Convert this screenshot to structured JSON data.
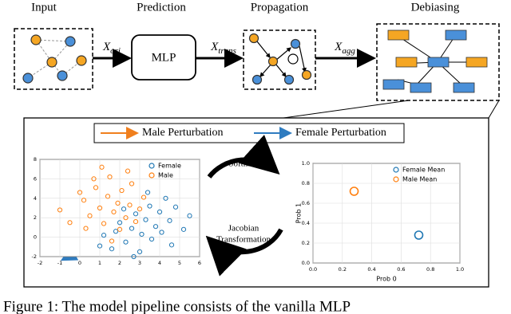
{
  "header": {
    "stages": [
      "Input",
      "Prediction",
      "Propagation",
      "Debiasing"
    ]
  },
  "pipeline": {
    "mlp": "MLP",
    "arrows": [
      {
        "symbol": "X",
        "subscript": "ori"
      },
      {
        "symbol": "X",
        "subscript": "trans"
      },
      {
        "symbol": "X",
        "subscript": "agg"
      }
    ]
  },
  "panel": {
    "legend": [
      "Male Perturbation",
      "Female Perturbation"
    ],
    "softmax": "Softmax",
    "jacobian": [
      "Jacobian",
      "Transformation"
    ]
  },
  "chart_data": [
    {
      "type": "scatter",
      "xlim": [
        -2,
        6
      ],
      "xticks": [
        -2,
        -1,
        0,
        1,
        2,
        3,
        4,
        5,
        6
      ],
      "ylim": [
        -2,
        8
      ],
      "yticks": [
        -2,
        0,
        2,
        4,
        6,
        8
      ],
      "grid": true,
      "legend": "upper right",
      "series": [
        {
          "name": "Female",
          "color": "#1f77b4",
          "x": [
            1.2,
            1.6,
            2.0,
            2.3,
            2.6,
            2.8,
            3.0,
            3.1,
            3.3,
            3.5,
            3.6,
            3.8,
            4.0,
            4.1,
            4.3,
            4.5,
            4.8,
            5.2,
            5.5,
            2.2,
            1.8,
            3.4,
            2.7,
            4.6,
            1.0
          ],
          "values": [
            0.2,
            -1.2,
            1.5,
            -0.5,
            0.9,
            2.4,
            -1.5,
            0.3,
            1.8,
            3.2,
            -0.2,
            1.1,
            2.6,
            0.5,
            4.0,
            1.7,
            3.1,
            0.8,
            2.2,
            2.9,
            0.6,
            4.6,
            -2.0,
            -0.8,
            -0.9
          ]
        },
        {
          "name": "Male",
          "color": "#ff7f0e",
          "x": [
            -0.5,
            0.2,
            0.5,
            0.8,
            1.0,
            1.2,
            1.4,
            1.5,
            1.7,
            1.9,
            2.0,
            2.1,
            2.3,
            2.5,
            2.6,
            2.8,
            3.0,
            0.0,
            0.3,
            1.1,
            1.6,
            2.4,
            3.2,
            -1.0,
            0.7
          ],
          "values": [
            1.5,
            3.8,
            2.2,
            5.1,
            3.0,
            1.4,
            4.2,
            6.2,
            2.6,
            3.5,
            0.8,
            4.8,
            2.0,
            3.3,
            5.5,
            1.6,
            2.9,
            4.6,
            0.9,
            7.2,
            -0.4,
            6.8,
            4.1,
            2.8,
            6.0
          ]
        }
      ]
    },
    {
      "type": "scatter",
      "xlabel": "Prob 0",
      "ylabel": "Prob 1",
      "xlim": [
        0,
        1
      ],
      "xticks": [
        {
          "value": 0,
          "label": "0.0"
        },
        {
          "value": 0.2,
          "label": "0.2"
        },
        {
          "value": 0.4,
          "label": "0.4"
        },
        {
          "value": 0.6,
          "label": "0.6"
        },
        {
          "value": 0.8,
          "label": "0.8"
        },
        {
          "value": 1,
          "label": "1.0"
        }
      ],
      "ylim": [
        0,
        1
      ],
      "yticks": [
        {
          "value": 0,
          "label": "0.0"
        },
        {
          "value": 0.2,
          "label": "0.2"
        },
        {
          "value": 0.4,
          "label": "0.4"
        },
        {
          "value": 0.6,
          "label": "0.6"
        },
        {
          "value": 0.8,
          "label": "0.8"
        },
        {
          "value": 1,
          "label": "1.0"
        }
      ],
      "grid": true,
      "legend": "upper right",
      "series": [
        {
          "name": "Female Mean",
          "color": "#1f77b4",
          "x": [
            0.72
          ],
          "values": [
            0.28
          ]
        },
        {
          "name": "Male Mean",
          "color": "#ff7f0e",
          "x": [
            0.28
          ],
          "values": [
            0.72
          ]
        }
      ]
    }
  ],
  "caption": "Figure 1: The model pipeline consists of the vanilla MLP"
}
